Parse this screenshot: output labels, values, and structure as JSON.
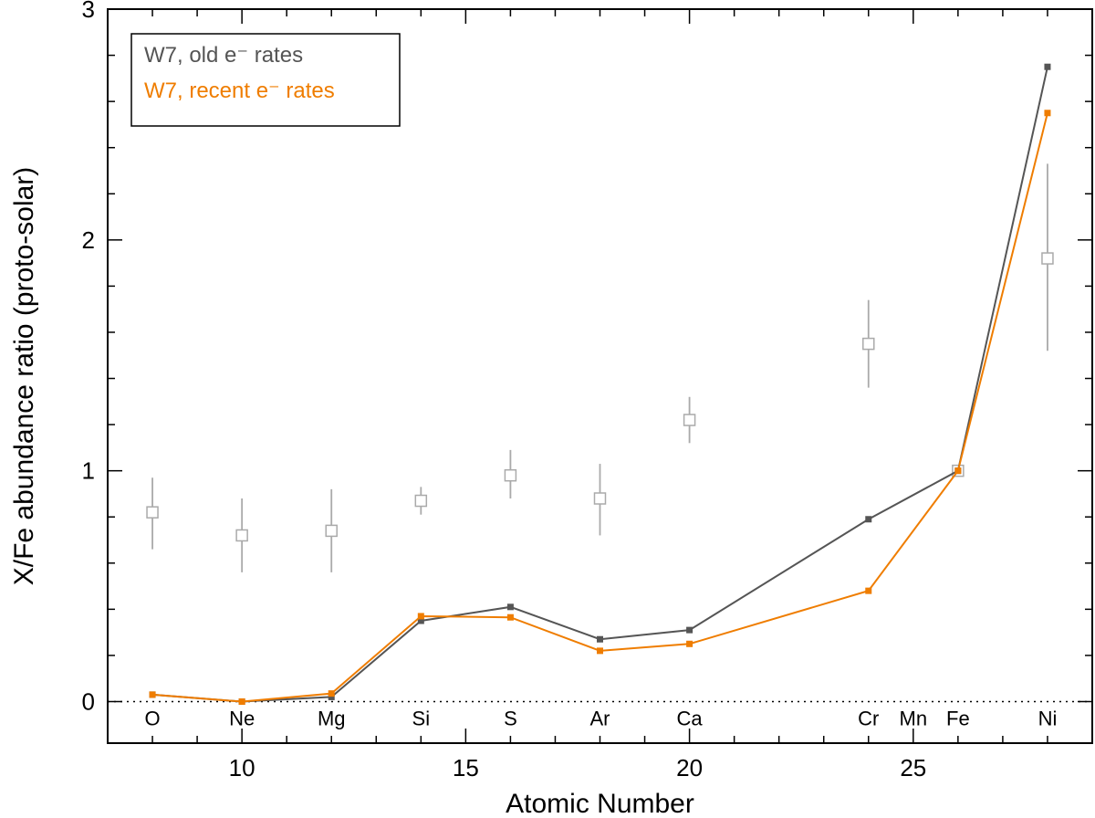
{
  "chart_data": {
    "type": "line",
    "title": "",
    "xlabel": "Atomic Number",
    "ylabel": "X/Fe abundance ratio (proto-solar)",
    "xlim": [
      7,
      29
    ],
    "ylim": [
      -0.18,
      3.0
    ],
    "xticks": [
      10,
      15,
      20,
      25
    ],
    "yticks": [
      0,
      1,
      2,
      3
    ],
    "grid": false,
    "reference_line": 0,
    "legend_position": "top-left",
    "element_labels": [
      {
        "z": 8,
        "label": "O"
      },
      {
        "z": 10,
        "label": "Ne"
      },
      {
        "z": 12,
        "label": "Mg"
      },
      {
        "z": 14,
        "label": "Si"
      },
      {
        "z": 16,
        "label": "S"
      },
      {
        "z": 18,
        "label": "Ar"
      },
      {
        "z": 20,
        "label": "Ca"
      },
      {
        "z": 24,
        "label": "Cr"
      },
      {
        "z": 25,
        "label": "Mn"
      },
      {
        "z": 26,
        "label": "Fe"
      },
      {
        "z": 28,
        "label": "Ni"
      }
    ],
    "series": [
      {
        "name": "W7, old e⁻ rates",
        "color": "#555555",
        "x": [
          8,
          10,
          12,
          14,
          16,
          18,
          20,
          24,
          26,
          28
        ],
        "y": [
          0.03,
          0.0,
          0.02,
          0.35,
          0.41,
          0.27,
          0.31,
          0.79,
          1.0,
          2.75
        ]
      },
      {
        "name": "W7, recent e⁻ rates",
        "color": "#ef7d00",
        "x": [
          8,
          10,
          12,
          14,
          16,
          18,
          20,
          24,
          26,
          28
        ],
        "y": [
          0.03,
          0.0,
          0.035,
          0.37,
          0.365,
          0.22,
          0.25,
          0.48,
          1.0,
          2.55
        ]
      }
    ],
    "observed": {
      "color": "#aaaaaa",
      "points": [
        {
          "x": 8,
          "y": 0.82,
          "low": 0.66,
          "high": 0.97
        },
        {
          "x": 10,
          "y": 0.72,
          "low": 0.56,
          "high": 0.88
        },
        {
          "x": 12,
          "y": 0.74,
          "low": 0.56,
          "high": 0.92
        },
        {
          "x": 14,
          "y": 0.87,
          "low": 0.81,
          "high": 0.93
        },
        {
          "x": 16,
          "y": 0.98,
          "low": 0.88,
          "high": 1.09
        },
        {
          "x": 18,
          "y": 0.88,
          "low": 0.72,
          "high": 1.03
        },
        {
          "x": 20,
          "y": 1.22,
          "low": 1.12,
          "high": 1.32
        },
        {
          "x": 24,
          "y": 1.55,
          "low": 1.36,
          "high": 1.74
        },
        {
          "x": 26,
          "y": 1.0,
          "low": 1.0,
          "high": 1.0
        },
        {
          "x": 28,
          "y": 1.92,
          "low": 1.52,
          "high": 2.33
        }
      ]
    }
  }
}
